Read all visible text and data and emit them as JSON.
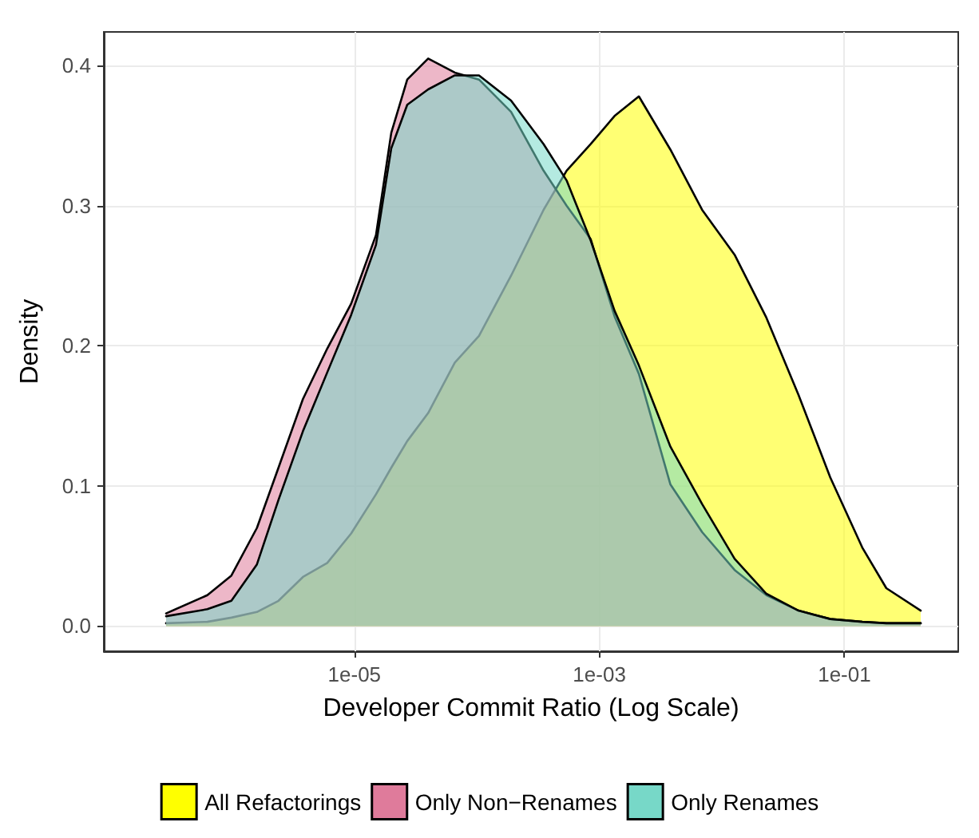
{
  "chart_data": {
    "type": "area",
    "xlabel": "Developer Commit Ratio (Log Scale)",
    "ylabel": "Density",
    "log": "x",
    "grid": true,
    "legend": "bottom",
    "marker": "none",
    "line_style": "solid",
    "x": [
      2.9e-07,
      6.3e-07,
      9.9e-07,
      1.6e-06,
      2.4e-06,
      3.8e-06,
      6e-06,
      9.4e-06,
      1.5e-05,
      2e-05,
      2.7e-05,
      4e-05,
      6.6e-05,
      0.000104,
      0.00019,
      0.00035,
      0.00054,
      0.00085,
      0.00133,
      0.0021,
      0.0038,
      0.0069,
      0.0127,
      0.0231,
      0.0422,
      0.0767,
      0.14,
      0.22,
      0.42
    ],
    "series": [
      {
        "name": "All Refactorings",
        "color": "#ffff00",
        "values": [
          0.002,
          0.003,
          0.006,
          0.01,
          0.018,
          0.035,
          0.045,
          0.066,
          0.094,
          0.113,
          0.132,
          0.152,
          0.188,
          0.207,
          0.25,
          0.297,
          0.325,
          0.344,
          0.364,
          0.378,
          0.34,
          0.297,
          0.265,
          0.22,
          0.165,
          0.106,
          0.056,
          0.027,
          0.011
        ]
      },
      {
        "name": "Only Non−Renames",
        "color": "#df7b9b",
        "values": [
          0.009,
          0.022,
          0.036,
          0.07,
          0.113,
          0.162,
          0.198,
          0.23,
          0.279,
          0.352,
          0.39,
          0.405,
          0.395,
          0.39,
          0.367,
          0.325,
          0.3,
          0.276,
          0.221,
          0.18,
          0.101,
          0.067,
          0.04,
          0.022,
          0.011,
          0.005,
          0.003,
          0.002,
          0.002
        ]
      },
      {
        "name": "Only Renames",
        "color": "#77d8c8",
        "values": [
          0.007,
          0.012,
          0.018,
          0.044,
          0.09,
          0.139,
          0.181,
          0.222,
          0.272,
          0.341,
          0.372,
          0.383,
          0.393,
          0.393,
          0.375,
          0.344,
          0.318,
          0.275,
          0.225,
          0.186,
          0.128,
          0.087,
          0.048,
          0.023,
          0.011,
          0.005,
          0.003,
          0.002,
          0.002
        ]
      }
    ],
    "xlim": [
      9e-08,
      0.85
    ],
    "xticks": [
      {
        "value": 1e-05,
        "label": "1e-05"
      },
      {
        "value": 0.001,
        "label": "1e-03"
      },
      {
        "value": 0.1,
        "label": "1e-01"
      }
    ],
    "ylim": [
      -0.018,
      0.424
    ],
    "yticks": [
      {
        "value": 0,
        "label": "0.0"
      },
      {
        "value": 0.1,
        "label": "0.1"
      },
      {
        "value": 0.2,
        "label": "0.2"
      },
      {
        "value": 0.3,
        "label": "0.3"
      },
      {
        "value": 0.4,
        "label": "0.4"
      }
    ]
  }
}
